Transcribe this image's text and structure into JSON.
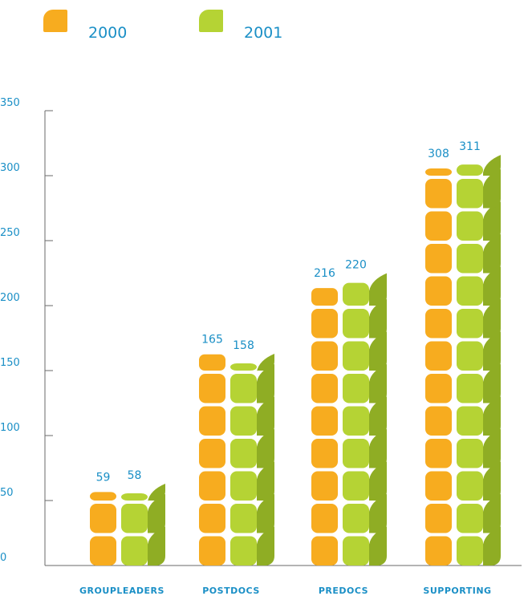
{
  "legend": [
    {
      "label": "2000",
      "color": "#f7ac1f"
    },
    {
      "label": "2001",
      "color": "#b5d334"
    }
  ],
  "chart_data": {
    "type": "bar",
    "categories": [
      "GROUPLEADERS",
      "POSTDOCS",
      "PREDOCS",
      "SUPPORTING"
    ],
    "series": [
      {
        "name": "2000",
        "values": [
          59,
          165,
          216,
          308
        ]
      },
      {
        "name": "2001",
        "values": [
          58,
          158,
          220,
          311
        ]
      }
    ],
    "yticks": [
      0,
      50,
      100,
      150,
      200,
      250,
      300,
      350
    ],
    "ylim": [
      0,
      350
    ],
    "data_labels": [
      [
        "59",
        "165",
        "216",
        "308"
      ],
      [
        "58",
        "158",
        "220",
        "311"
      ]
    ],
    "colors": {
      "series_2000": "#f7ac1f",
      "series_2001_face": "#b5d334",
      "series_2001_side": "#8fad24",
      "axis": "#6a6a6a",
      "tick_label": "#1a8fc6",
      "data_label": "#1a8fc6",
      "category_label": "#1a8fc6"
    },
    "grid": false,
    "legend_position": "top-left"
  }
}
